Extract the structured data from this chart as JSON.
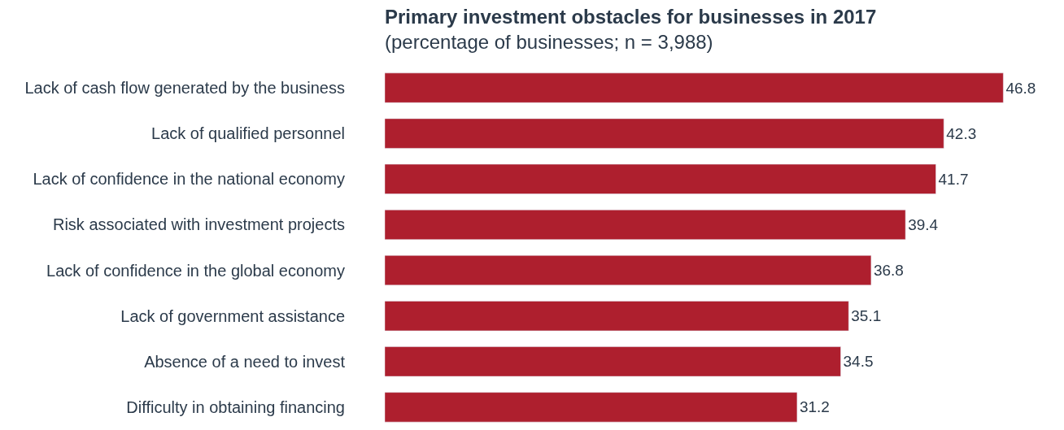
{
  "chart_data": {
    "type": "bar",
    "orientation": "horizontal",
    "title": "Primary investment obstacles for businesses in 2017",
    "subtitle": "(percentage of businesses; n = 3,988)",
    "categories": [
      "Lack of cash flow generated by the business",
      "Lack of qualified personnel",
      "Lack of confidence in the national economy",
      "Risk associated with investment projects",
      "Lack of confidence in the global economy",
      "Lack of government assistance",
      "Absence of a need to invest",
      "Difficulty in obtaining financing"
    ],
    "values": [
      46.8,
      42.3,
      41.7,
      39.4,
      36.8,
      35.1,
      34.5,
      31.2
    ],
    "color": "#ae1f2e",
    "data_labels": true
  }
}
